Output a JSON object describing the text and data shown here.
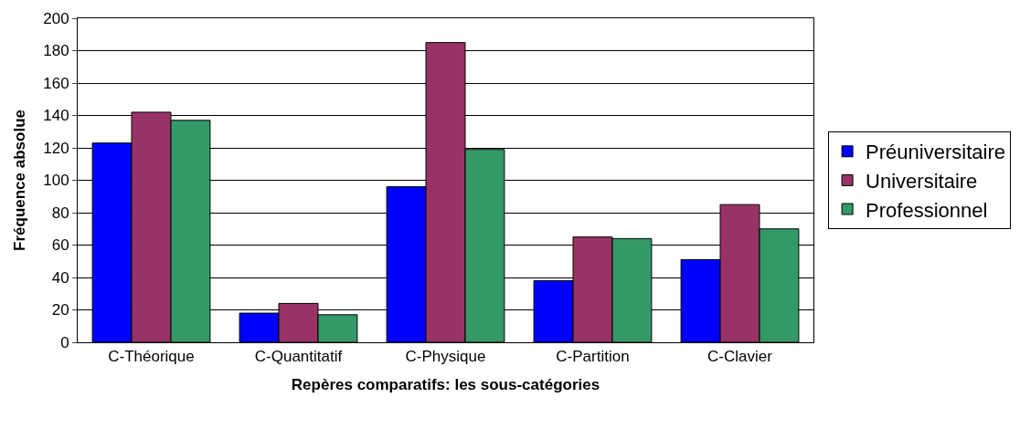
{
  "chart_data": {
    "type": "bar",
    "xlabel": "Repères comparatifs: les sous-catégories",
    "ylabel": "Fréquence absolue",
    "categories": [
      "C-Théorique",
      "C-Quantitatif",
      "C-Physique",
      "C-Partition",
      "C-Clavier"
    ],
    "series": [
      {
        "name": "Préuniversitaire",
        "color": "#0000ff",
        "values": [
          123,
          18,
          96,
          38,
          51
        ]
      },
      {
        "name": "Universitaire",
        "color": "#993366",
        "values": [
          142,
          24,
          185,
          65,
          85
        ]
      },
      {
        "name": "Professionnel",
        "color": "#339966",
        "values": [
          137,
          17,
          119,
          64,
          70
        ]
      }
    ],
    "ylim": [
      0,
      200
    ],
    "yticks": [
      0,
      20,
      40,
      60,
      80,
      100,
      120,
      140,
      160,
      180,
      200
    ],
    "grid": "y",
    "legend": "right"
  }
}
